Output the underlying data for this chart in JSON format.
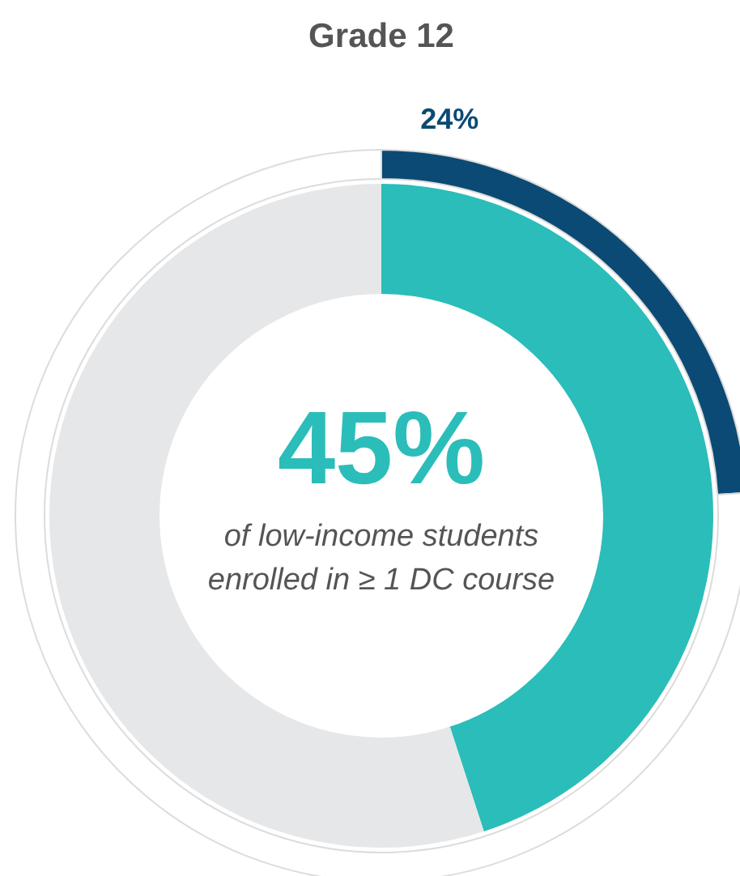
{
  "chart_data": {
    "type": "donut",
    "title": "Grade 12",
    "categories": [
      null,
      null
    ],
    "series": [
      {
        "colors": [
          "#0b4a74",
          "#ffffff"
        ],
        "values": [
          24,
          76
        ],
        "value_labels": [
          "24%",
          null
        ]
      },
      {
        "colors": [
          "#2bbdb9",
          "#e6e7e9"
        ],
        "values": [
          45,
          55
        ]
      }
    ],
    "annotations": [
      "45%",
      "of low-income students enrolled in ≥ 1 DC course"
    ]
  }
}
